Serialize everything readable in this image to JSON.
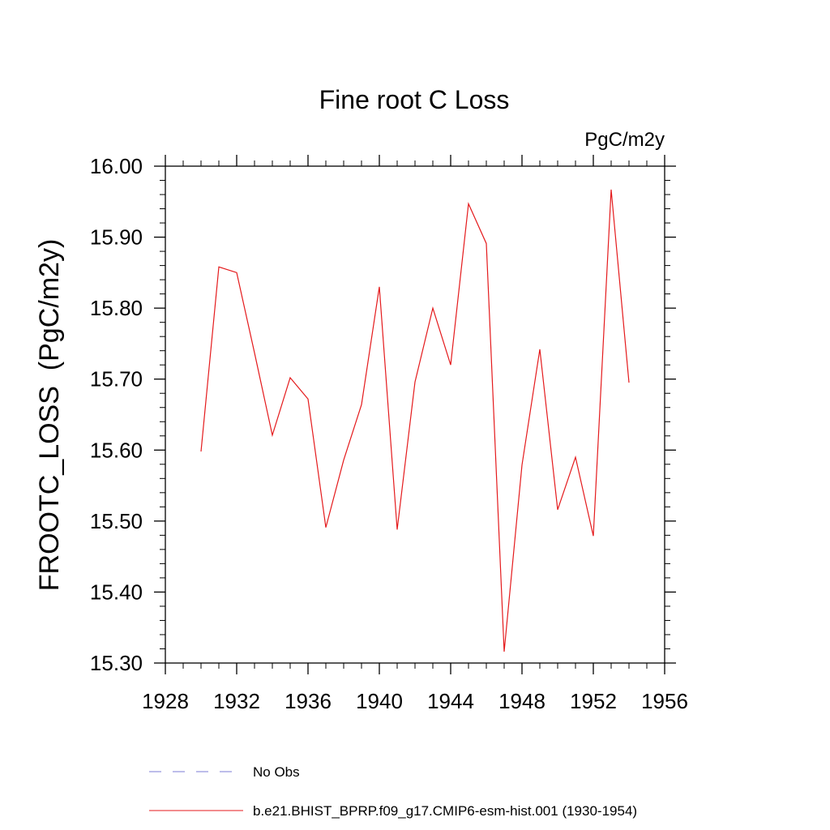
{
  "chart_data": {
    "type": "line",
    "title": "Fine root C Loss",
    "units_label": "PgC/m2y",
    "ylabel": "FROOTC_LOSS  (PgC/m2y)",
    "xlabel": "",
    "xlim": [
      1928,
      1956
    ],
    "ylim": [
      15.3,
      16.0
    ],
    "x_ticks": [
      1928,
      1932,
      1936,
      1940,
      1944,
      1948,
      1952,
      1956
    ],
    "y_ticks": [
      "15.30",
      "15.40",
      "15.50",
      "15.60",
      "15.70",
      "15.80",
      "15.90",
      "16.00"
    ],
    "legend_position": "bottom",
    "legend": [
      {
        "label": "No Obs",
        "color": "#7b7bd4",
        "dash": true
      },
      {
        "label": "b.e21.BHIST_BPRP.f09_g17.CMIP6-esm-hist.001 (1930-1954)",
        "color": "#e41a1c",
        "dash": false
      }
    ],
    "series": [
      {
        "name": "b.e21.BHIST_BPRP.f09_g17.CMIP6-esm-hist.001 (1930-1954)",
        "color": "#e41a1c",
        "x": [
          1930,
          1931,
          1932,
          1933,
          1934,
          1935,
          1936,
          1937,
          1938,
          1939,
          1940,
          1941,
          1942,
          1943,
          1944,
          1945,
          1946,
          1947,
          1948,
          1949,
          1950,
          1951,
          1952,
          1953,
          1954
        ],
        "values": [
          15.598,
          15.858,
          15.85,
          15.737,
          15.621,
          15.702,
          15.672,
          15.491,
          15.586,
          15.664,
          15.83,
          15.488,
          15.696,
          15.8,
          15.72,
          15.947,
          15.891,
          15.316,
          15.579,
          15.742,
          15.516,
          15.59,
          15.479,
          15.967,
          15.695
        ]
      }
    ]
  }
}
